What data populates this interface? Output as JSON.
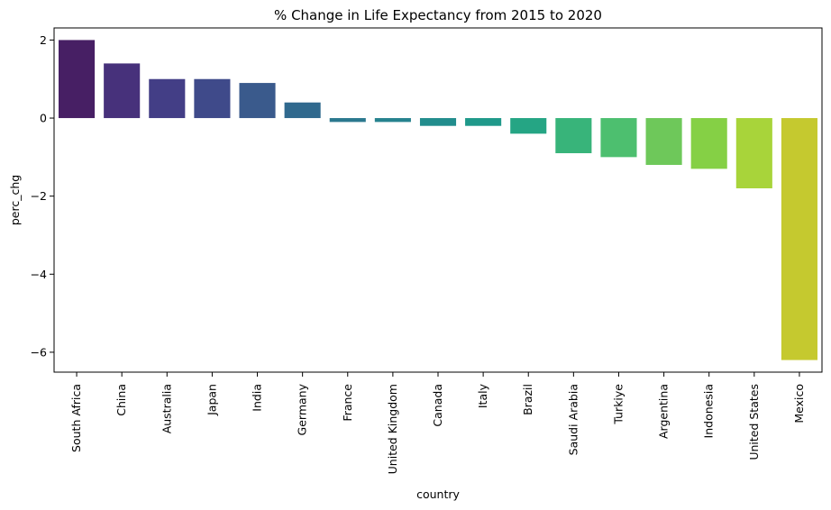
{
  "chart_data": {
    "type": "bar",
    "title": "% Change in Life Expectancy from 2015 to 2020",
    "xlabel": "country",
    "ylabel": "perc_chg",
    "categories": [
      "South Africa",
      "China",
      "Australia",
      "Japan",
      "India",
      "Germany",
      "France",
      "United Kingdom",
      "Canada",
      "Italy",
      "Brazil",
      "Saudi Arabia",
      "Turkiye",
      "Argentina",
      "Indonesia",
      "United States",
      "Mexico"
    ],
    "values": [
      2.0,
      1.4,
      1.0,
      1.0,
      0.9,
      0.4,
      -0.1,
      -0.1,
      -0.2,
      -0.2,
      -0.4,
      -0.9,
      -1.0,
      -1.2,
      -1.3,
      -1.8,
      -6.2
    ],
    "colors": [
      "#471f64",
      "#47317b",
      "#433e86",
      "#3f4a8a",
      "#3a5a8c",
      "#30698e",
      "#2b788e",
      "#26828e",
      "#228d8d",
      "#1f998a",
      "#25a584",
      "#38b47a",
      "#4dbf6f",
      "#6ec85a",
      "#85d045",
      "#a8d43a",
      "#c5c92f"
    ],
    "yticks": [
      2,
      0,
      -2,
      -4,
      -6
    ],
    "ytick_labels": [
      "2",
      "0",
      "−2",
      "−4",
      "−6"
    ],
    "ylim": [
      -6.51,
      2.31
    ],
    "grid": false,
    "legend": "none"
  }
}
